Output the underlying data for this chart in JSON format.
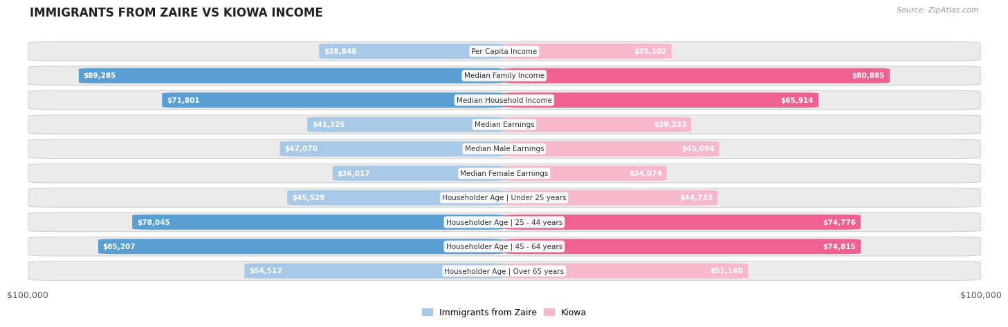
{
  "title": "IMMIGRANTS FROM ZAIRE VS KIOWA INCOME",
  "source": "Source: ZipAtlas.com",
  "categories": [
    "Per Capita Income",
    "Median Family Income",
    "Median Household Income",
    "Median Earnings",
    "Median Male Earnings",
    "Median Female Earnings",
    "Householder Age | Under 25 years",
    "Householder Age | 25 - 44 years",
    "Householder Age | 45 - 64 years",
    "Householder Age | Over 65 years"
  ],
  "zaire_values": [
    38848,
    89285,
    71801,
    41325,
    47070,
    36017,
    45529,
    78045,
    85207,
    54512
  ],
  "kiowa_values": [
    35102,
    80885,
    65914,
    39232,
    45094,
    34074,
    44733,
    74776,
    74815,
    51140
  ],
  "zaire_color_light": "#a8c8e8",
  "zaire_color_dark": "#5a9fd4",
  "kiowa_color_light": "#f8b8cc",
  "kiowa_color_dark": "#f06090",
  "max_value": 100000,
  "bg_color": "#ffffff",
  "row_bg": "#ebebeb",
  "axis_label": "$100,000",
  "legend_zaire": "Immigrants from Zaire",
  "legend_kiowa": "Kiowa",
  "inside_label_threshold": 0.15
}
